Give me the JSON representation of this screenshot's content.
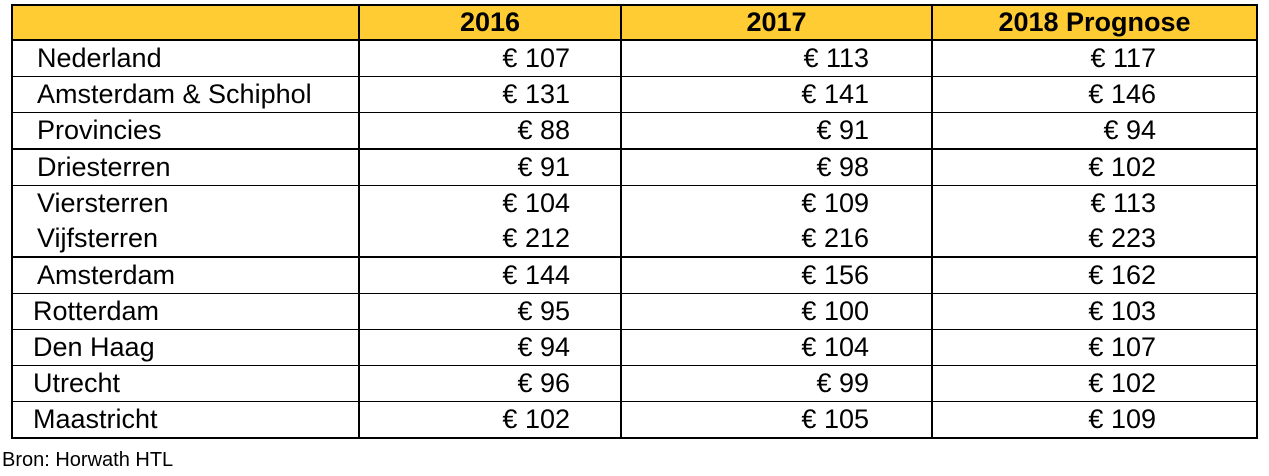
{
  "table": {
    "headers": [
      "",
      "2016",
      "2017",
      "2018 Prognose"
    ],
    "rows": [
      {
        "label": "Nederland",
        "values": [
          "€ 107",
          "€ 113",
          "€ 117"
        ]
      },
      {
        "label": "Amsterdam & Schiphol",
        "values": [
          "€ 131",
          "€ 141",
          "€ 146"
        ]
      },
      {
        "label": "Provincies",
        "values": [
          "€ 88",
          "€ 91",
          "€ 94"
        ]
      },
      {
        "label": "Driesterren",
        "values": [
          "€ 91",
          "€ 98",
          "€ 102"
        ]
      },
      {
        "label": "Viersterren",
        "values": [
          "€ 104",
          "€ 109",
          "€ 113"
        ]
      },
      {
        "label": "Vijfsterren",
        "values": [
          "€ 212",
          "€ 216",
          "€ 223"
        ]
      },
      {
        "label": "Amsterdam",
        "values": [
          "€ 144",
          "€ 156",
          "€ 162"
        ]
      },
      {
        "label": "Rotterdam",
        "values": [
          "€ 95",
          "€ 100",
          "€ 103"
        ]
      },
      {
        "label": "Den Haag",
        "values": [
          "€ 94",
          "€ 104",
          "€ 107"
        ]
      },
      {
        "label": "Utrecht",
        "values": [
          "€ 96",
          "€ 99",
          "€ 102"
        ]
      },
      {
        "label": "Maastricht",
        "values": [
          "€ 102",
          "€ 105",
          "€ 109"
        ]
      }
    ],
    "header_color": "#ffcc33"
  },
  "source": "Bron: Horwath HTL"
}
